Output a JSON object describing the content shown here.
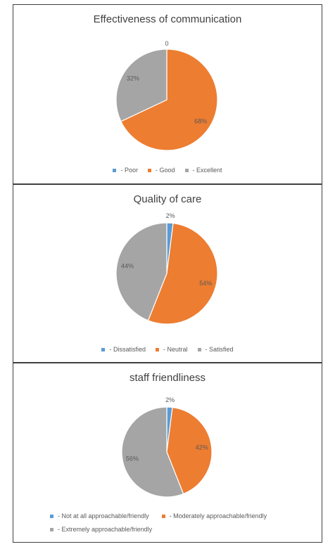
{
  "colors": {
    "blue": "#5B9BD5",
    "orange": "#ED7D31",
    "gray": "#A5A5A5"
  },
  "chart_data": [
    {
      "type": "pie",
      "title": "Effectiveness of communication",
      "categories": [
        " - Poor",
        " - Good",
        " - Excellent"
      ],
      "values": [
        0,
        68,
        32
      ],
      "data_labels": [
        "0",
        "68%",
        "32%"
      ],
      "legend_position": "bottom"
    },
    {
      "type": "pie",
      "title": "Quality of care",
      "categories": [
        " - Dissatisfied",
        " - Neutral",
        " - Satisfied"
      ],
      "values": [
        2,
        54,
        44
      ],
      "data_labels": [
        "2%",
        "54%",
        "44%"
      ],
      "legend_position": "bottom"
    },
    {
      "type": "pie",
      "title": "staff friendliness",
      "categories": [
        " - Not at all approachable/friendly",
        " - Moderately approachable/friendly",
        " - Extremely approachable/friendly"
      ],
      "values": [
        2,
        42,
        56
      ],
      "data_labels": [
        "2%",
        "42%",
        "56%"
      ],
      "legend_position": "bottom"
    }
  ]
}
